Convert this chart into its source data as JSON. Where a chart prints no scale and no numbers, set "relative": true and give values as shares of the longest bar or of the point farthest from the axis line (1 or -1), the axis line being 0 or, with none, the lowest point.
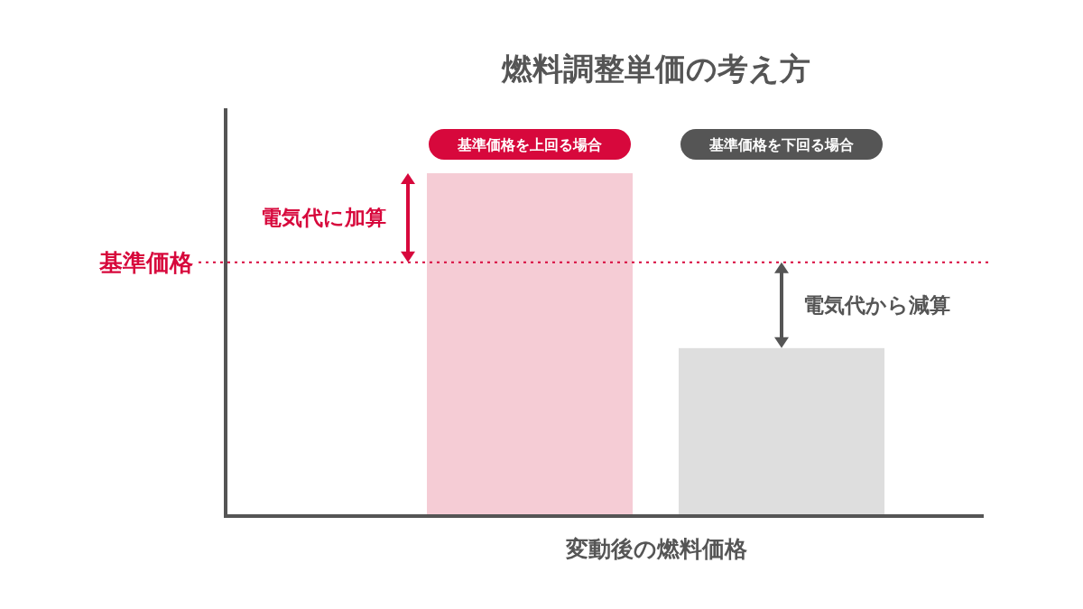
{
  "chart_data": {
    "type": "bar",
    "title": "燃料調整単価の考え方",
    "xlabel": "変動後の燃料価格",
    "relative": true,
    "categories": [
      "基準価格を上回る場合",
      "基準価格を下回る場合"
    ],
    "values": [
      1,
      0.49
    ],
    "colors": [
      "#f5ccd5",
      "#dedede"
    ],
    "ref_lines": [
      {
        "axis": "y",
        "value": 0.74,
        "label": "基準価格",
        "color": "#d7083c",
        "line_style": "dotted"
      }
    ],
    "annotations": [
      "電気代に加算",
      "電気代から減算"
    ]
  }
}
